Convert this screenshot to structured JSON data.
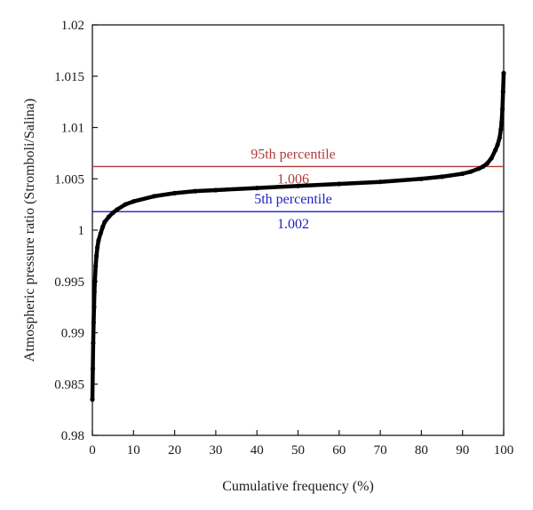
{
  "chart_data": {
    "type": "scatter",
    "title": "",
    "xlabel": "Cumulative frequency (%)",
    "ylabel": "Atmospheric pressure ratio (Stromboli/Salina)",
    "xlim": [
      0,
      100
    ],
    "ylim": [
      0.98,
      1.02
    ],
    "x_ticks": [
      "0",
      "10",
      "20",
      "30",
      "40",
      "50",
      "60",
      "70",
      "80",
      "90",
      "100"
    ],
    "y_ticks": [
      "0.98",
      "0.985",
      "0.99",
      "0.995",
      "1",
      "1.005",
      "1.01",
      "1.015",
      "1.02"
    ],
    "grid": false,
    "marker_color": "#000000",
    "series": [
      {
        "x": [
          0.0,
          0.1,
          0.2,
          0.3,
          0.4,
          0.5,
          0.6,
          0.8,
          1.0,
          1.2,
          1.5,
          2.0,
          2.5,
          3.0,
          4.0,
          5.0,
          6.0,
          8.0,
          10.0,
          15.0,
          20.0,
          25.0,
          30.0,
          40.0,
          50.0,
          60.0,
          70.0,
          80.0,
          85.0,
          90.0,
          92.0,
          94.0,
          95.0,
          96.0,
          97.0,
          98.0,
          98.5,
          99.0,
          99.3,
          99.5,
          99.7,
          99.85,
          100.0
        ],
        "y": [
          0.9835,
          0.9865,
          0.989,
          0.991,
          0.9925,
          0.994,
          0.995,
          0.9965,
          0.9975,
          0.9983,
          0.999,
          0.9997,
          1.0003,
          1.0008,
          1.0013,
          1.0017,
          1.002,
          1.0025,
          1.0028,
          1.0033,
          1.0036,
          1.0038,
          1.0039,
          1.0041,
          1.0043,
          1.0045,
          1.0047,
          1.005,
          1.0052,
          1.0055,
          1.0057,
          1.006,
          1.0062,
          1.0065,
          1.007,
          1.0078,
          1.0083,
          1.009,
          1.0098,
          1.0105,
          1.0118,
          1.0135,
          1.0153
        ]
      }
    ],
    "reference_lines": [
      {
        "label": "95th percentile",
        "value_label": "1.006",
        "y": 1.0062,
        "color": "#b03a3a"
      },
      {
        "label": "5th percentile",
        "value_label": "1.002",
        "y": 1.0018,
        "color": "#1f1fbf"
      }
    ]
  }
}
